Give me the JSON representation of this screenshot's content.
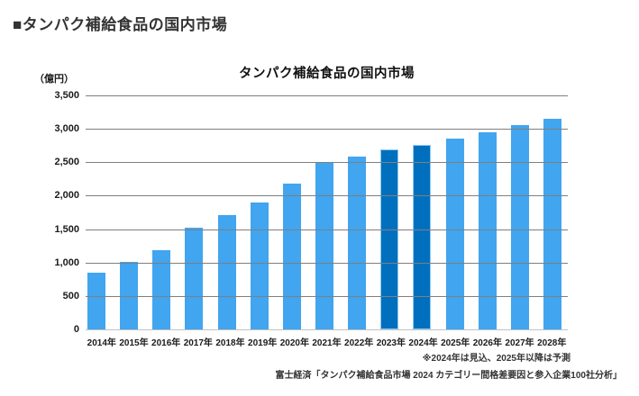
{
  "header": {
    "title": "■タンパク補給食品の国内市場"
  },
  "chart_data": {
    "type": "bar",
    "title": "タンパク補給食品の国内市場",
    "unit_label": "（億円）",
    "categories": [
      "2014年",
      "2015年",
      "2016年",
      "2017年",
      "2018年",
      "2019年",
      "2020年",
      "2021年",
      "2022年",
      "2023年",
      "2024年",
      "2025年",
      "2026年",
      "2027年",
      "2028年"
    ],
    "values": [
      850,
      1010,
      1190,
      1520,
      1710,
      1900,
      2180,
      2500,
      2580,
      2690,
      2760,
      2860,
      2950,
      3050,
      3150
    ],
    "highlight_indices": [
      9,
      10
    ],
    "ylim": [
      0,
      3500
    ],
    "ytick_step": 500,
    "grid": true,
    "legend": "none",
    "colors": {
      "bar": "#41a5f0",
      "bar_highlight": "#0070be",
      "gridline": "#7f7f7f",
      "baseline": "#c2c2c2",
      "axis_text": "#1a1a1a"
    }
  },
  "footnotes": {
    "estimate_note": "※2024年は見込、2025年以降は予測",
    "source": "富士経済「タンパク補給食品市場 2024 カテゴリー間格差要因と参入企業100社分析」"
  }
}
